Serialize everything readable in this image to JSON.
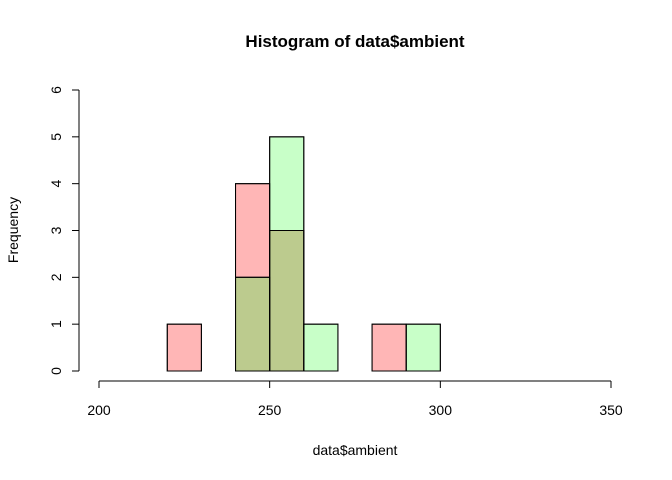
{
  "chart_data": {
    "type": "bar",
    "title": "Histogram of data$ambient",
    "xlabel": "data$ambient",
    "ylabel": "Frequency",
    "xlim": [
      200,
      350
    ],
    "ylim": [
      0,
      6
    ],
    "xticks": [
      "200",
      "250",
      "300",
      "350"
    ],
    "yticks": [
      "0",
      "1",
      "2",
      "3",
      "4",
      "5",
      "6"
    ],
    "bin_width": 10,
    "series": [
      {
        "color": "#FFB6B6",
        "bins": [
          {
            "x0": 220,
            "x1": 230,
            "count": 1
          },
          {
            "x0": 230,
            "x1": 240,
            "count": 0
          },
          {
            "x0": 240,
            "x1": 250,
            "count": 4
          },
          {
            "x0": 250,
            "x1": 260,
            "count": 3
          },
          {
            "x0": 260,
            "x1": 270,
            "count": 0
          },
          {
            "x0": 270,
            "x1": 280,
            "count": 0
          },
          {
            "x0": 280,
            "x1": 290,
            "count": 1
          }
        ]
      },
      {
        "color": "#B6FFB6",
        "bins": [
          {
            "x0": 240,
            "x1": 250,
            "count": 2
          },
          {
            "x0": 250,
            "x1": 260,
            "count": 5
          },
          {
            "x0": 260,
            "x1": 270,
            "count": 1
          },
          {
            "x0": 270,
            "x1": 280,
            "count": 0
          },
          {
            "x0": 280,
            "x1": 290,
            "count": 0
          },
          {
            "x0": 290,
            "x1": 300,
            "count": 1
          }
        ]
      }
    ],
    "grid": false,
    "legend": "none"
  },
  "colors": {
    "overlap": "#BCCB8E",
    "outline": "#000000"
  }
}
